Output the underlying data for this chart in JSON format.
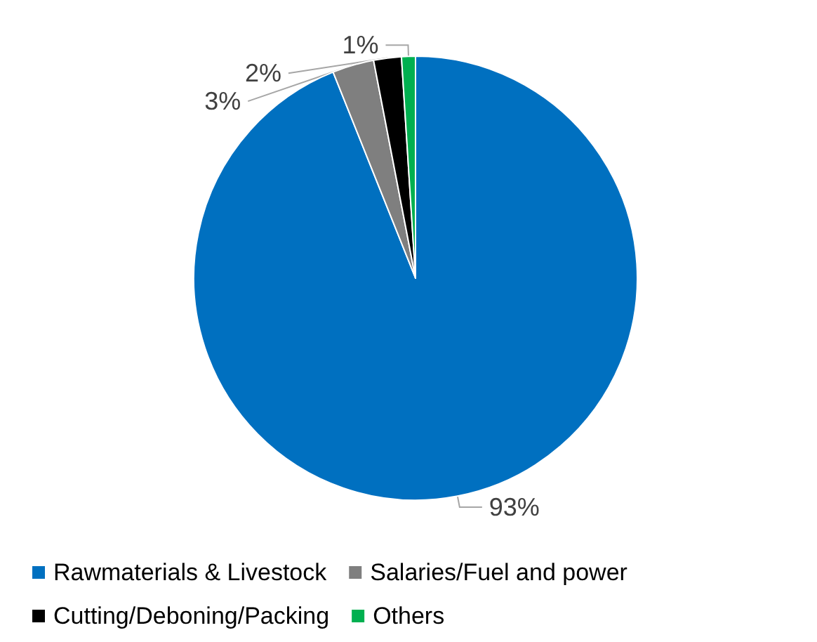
{
  "chart_data": {
    "type": "pie",
    "categories": [
      "Rawmaterials & Livestock",
      "Salaries/Fuel and power",
      "Cutting/Deboning/Packing",
      "Others"
    ],
    "values": [
      93,
      3,
      2,
      1
    ],
    "colors": [
      "#0070c0",
      "#7f7f7f",
      "#000000",
      "#00b050"
    ],
    "value_labels": [
      "93%",
      "3%",
      "2%",
      "1%"
    ],
    "legend": "bottom"
  }
}
